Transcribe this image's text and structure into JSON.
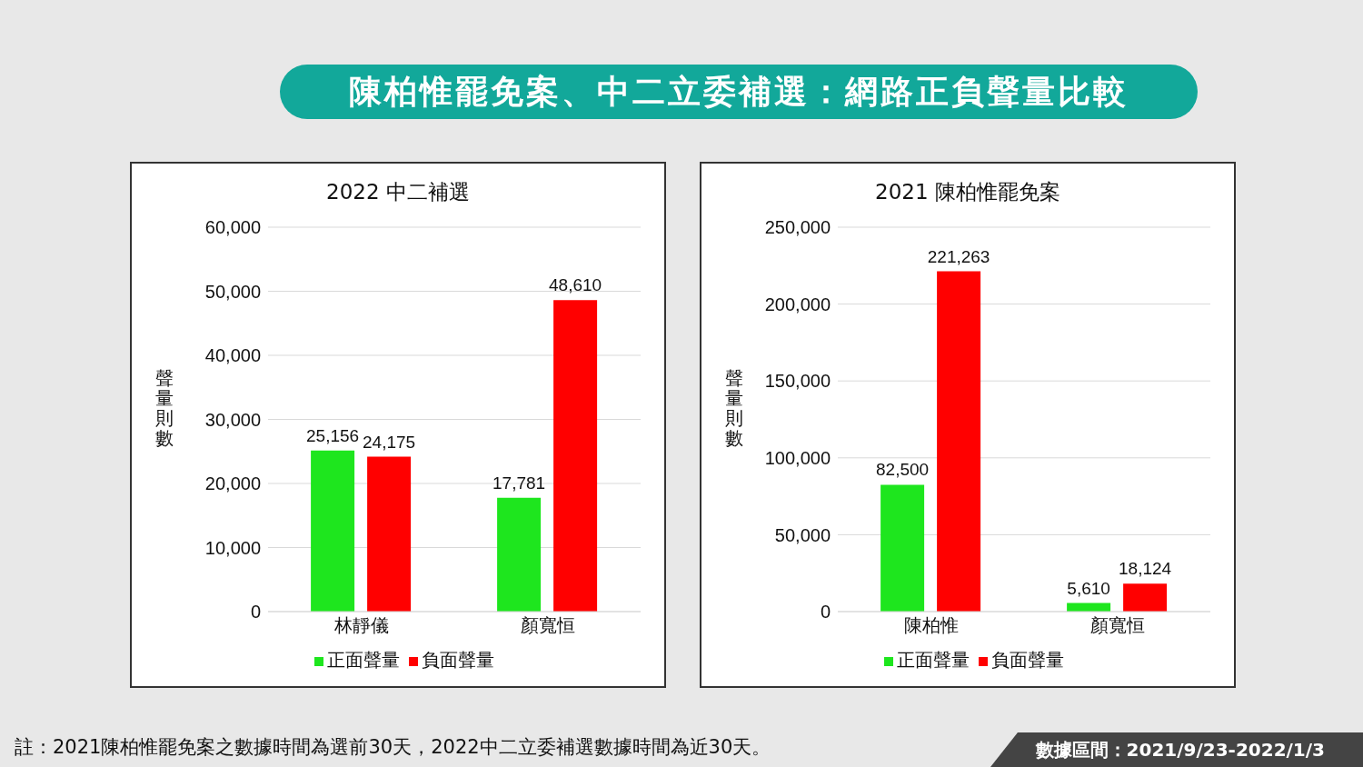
{
  "chart_data": [
    {
      "type": "bar",
      "title": "2022 中二補選",
      "categories": [
        "林靜儀",
        "顏寬恒"
      ],
      "ylabel": "聲量則數",
      "ylim": [
        0,
        60000
      ],
      "yticks": [
        0,
        {
          "value": 10000,
          "label": "10,000"
        },
        {
          "value": 20000,
          "label": "20,000"
        },
        {
          "value": 30000,
          "label": "30,000"
        },
        {
          "value": 40000,
          "label": "40,000"
        },
        {
          "value": 50000,
          "label": "50,000"
        },
        {
          "value": 60000,
          "label": "60,000"
        }
      ],
      "grid": "y",
      "legend": "bottom",
      "series": [
        {
          "name": "正面聲量",
          "color": "#1ee61e",
          "values": [
            25156,
            17781
          ],
          "value_labels": [
            "25,156",
            "17,781"
          ]
        },
        {
          "name": "負面聲量",
          "color": "#ff0000",
          "values": [
            24175,
            48610
          ],
          "value_labels": [
            "24,175",
            "48,610"
          ]
        }
      ],
      "annotations": [
        "陳柏惟罷免案、中二立委補選：網路正負聲量比較",
        "註：2021陳柏惟罷免案之數據時間為選前30天，2022中二立委補選數據時間為近30天。"
      ]
    },
    {
      "type": "bar",
      "title": "2021 陳柏惟罷免案",
      "categories": [
        "陳柏惟",
        "顏寬恒"
      ],
      "ylabel": "聲量則數",
      "ylim": [
        0,
        250000
      ],
      "yticks": [
        0,
        {
          "value": 50000,
          "label": "50,000"
        },
        {
          "value": 100000,
          "label": "100,000"
        },
        {
          "value": 150000,
          "label": "150,000"
        },
        {
          "value": 200000,
          "label": "200,000"
        },
        {
          "value": 250000,
          "label": "250,000"
        }
      ],
      "grid": "y",
      "legend": "bottom",
      "series": [
        {
          "name": "正面聲量",
          "color": "#1ee61e",
          "values": [
            82500,
            5610
          ],
          "value_labels": [
            "82,500",
            "5,610"
          ]
        },
        {
          "name": "負面聲量",
          "color": "#ff0000",
          "values": [
            221263,
            18124
          ],
          "value_labels": [
            "221,263",
            "18,124"
          ]
        }
      ],
      "annotations": [
        "數據區間：2021/9/23-2022/1/3"
      ]
    }
  ]
}
